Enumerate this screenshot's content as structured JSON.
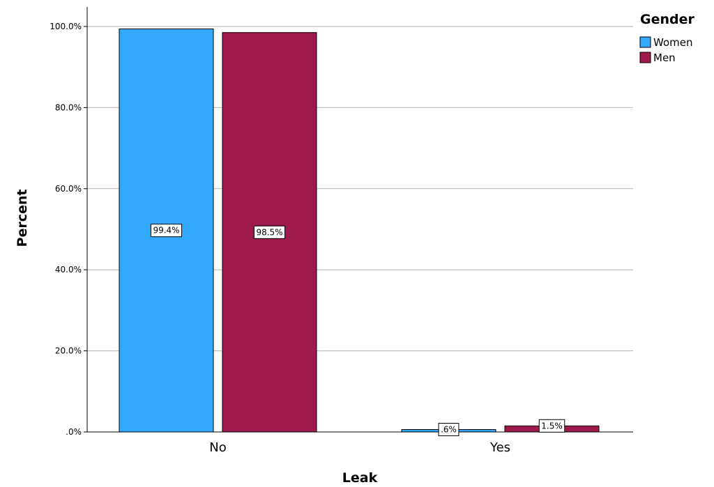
{
  "chart_data": {
    "type": "bar",
    "categories": [
      "No",
      "Yes"
    ],
    "series": [
      {
        "name": "Women",
        "values": [
          99.4,
          0.6
        ],
        "labels": [
          "99.4%",
          ".6%"
        ],
        "color": "#33a9fc"
      },
      {
        "name": "Men",
        "values": [
          98.5,
          1.5
        ],
        "labels": [
          "98.5%",
          "1.5%"
        ],
        "color": "#9e1a4c"
      }
    ],
    "xlabel": "Leak",
    "ylabel": "Percent",
    "ylim": [
      0,
      100
    ],
    "yticks": [
      0,
      20,
      40,
      60,
      80,
      100
    ],
    "ytick_labels": [
      ".0%",
      "20.0%",
      "40.0%",
      "60.0%",
      "80.0%",
      "100.0%"
    ],
    "legend_title": "Gender",
    "legend_position": "top-right",
    "grid": true,
    "gridline_color": "#b3b3b3"
  }
}
